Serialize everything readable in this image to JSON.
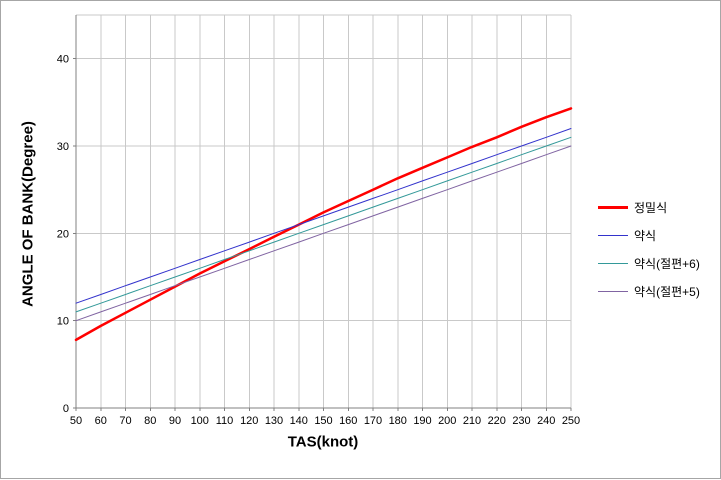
{
  "frame": {
    "border_color": "#a6a6a6"
  },
  "chart_data": {
    "type": "line",
    "title": "",
    "xlabel": "TAS(knot)",
    "ylabel": "ANGLE OF BANK(Degree)",
    "xlim": [
      50,
      250
    ],
    "ylim": [
      0,
      45
    ],
    "x_ticks": [
      50,
      60,
      70,
      80,
      90,
      100,
      110,
      120,
      130,
      140,
      150,
      160,
      170,
      180,
      190,
      200,
      210,
      220,
      230,
      240,
      250
    ],
    "y_ticks": [
      0,
      10,
      20,
      30,
      40
    ],
    "grid": true,
    "legend_position": "right",
    "grid_color": "#c9c9c9",
    "axis_color": "#808080",
    "x": [
      50,
      60,
      70,
      80,
      90,
      100,
      110,
      120,
      130,
      140,
      150,
      160,
      170,
      180,
      190,
      200,
      210,
      220,
      230,
      240,
      250
    ],
    "series": [
      {
        "name": "정밀식",
        "color": "#ff0000",
        "width": 2.5,
        "values": [
          7.8,
          9.4,
          10.9,
          12.4,
          13.9,
          15.4,
          16.8,
          18.2,
          19.6,
          21.0,
          22.4,
          23.7,
          25.0,
          26.3,
          27.5,
          28.7,
          29.9,
          31.0,
          32.2,
          33.3,
          34.3
        ]
      },
      {
        "name": "약식",
        "color": "#3333cc",
        "width": 1,
        "values": [
          12,
          13,
          14,
          15,
          16,
          17,
          18,
          19,
          20,
          21,
          22,
          23,
          24,
          25,
          26,
          27,
          28,
          29,
          30,
          31,
          32
        ]
      },
      {
        "name": "약식(절편+6)",
        "color": "#339999",
        "width": 1,
        "values": [
          11,
          12,
          13,
          14,
          15,
          16,
          17,
          18,
          19,
          20,
          21,
          22,
          23,
          24,
          25,
          26,
          27,
          28,
          29,
          30,
          31
        ]
      },
      {
        "name": "약식(절편+5)",
        "color": "#8064a2",
        "width": 1,
        "values": [
          10,
          11,
          12,
          13,
          14,
          15,
          16,
          17,
          18,
          19,
          20,
          21,
          22,
          23,
          24,
          25,
          26,
          27,
          28,
          29,
          30
        ]
      }
    ]
  }
}
